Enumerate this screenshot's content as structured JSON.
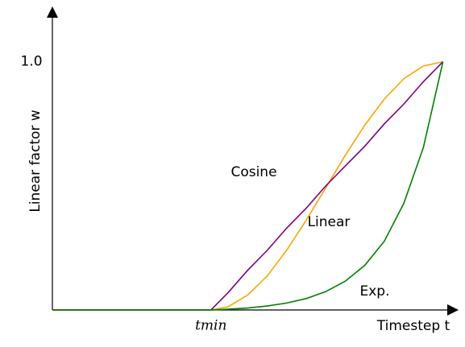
{
  "chart_data": {
    "type": "line",
    "x_label": "Timestep t",
    "y_label": "Linear factor w",
    "x": [
      0,
      0.406,
      0.45,
      0.5,
      0.55,
      0.6,
      0.65,
      0.7,
      0.75,
      0.8,
      0.85,
      0.9,
      0.95,
      1.0
    ],
    "series": [
      {
        "name": "Cosine",
        "color": "#ffa500",
        "values": [
          0,
          0,
          0.013,
          0.06,
          0.137,
          0.241,
          0.362,
          0.492,
          0.623,
          0.745,
          0.85,
          0.932,
          0.983,
          1
        ]
      },
      {
        "name": "Linear",
        "color": "#800080",
        "values": [
          0,
          0,
          0.07,
          0.16,
          0.24,
          0.33,
          0.41,
          0.5,
          0.58,
          0.66,
          0.75,
          0.83,
          0.92,
          1
        ]
      },
      {
        "name": "Exp.",
        "color": "#008000",
        "values": [
          0,
          0,
          0.003,
          0.008,
          0.016,
          0.028,
          0.046,
          0.074,
          0.116,
          0.18,
          0.277,
          0.43,
          0.655,
          1
        ]
      }
    ],
    "xlim": [
      0,
      1.04
    ],
    "ylim": [
      0,
      1.21
    ],
    "xticks": [
      {
        "value": 0.406,
        "label": "tmin"
      }
    ],
    "yticks": [
      {
        "value": 1,
        "label": "1.0"
      }
    ],
    "grid": false
  }
}
